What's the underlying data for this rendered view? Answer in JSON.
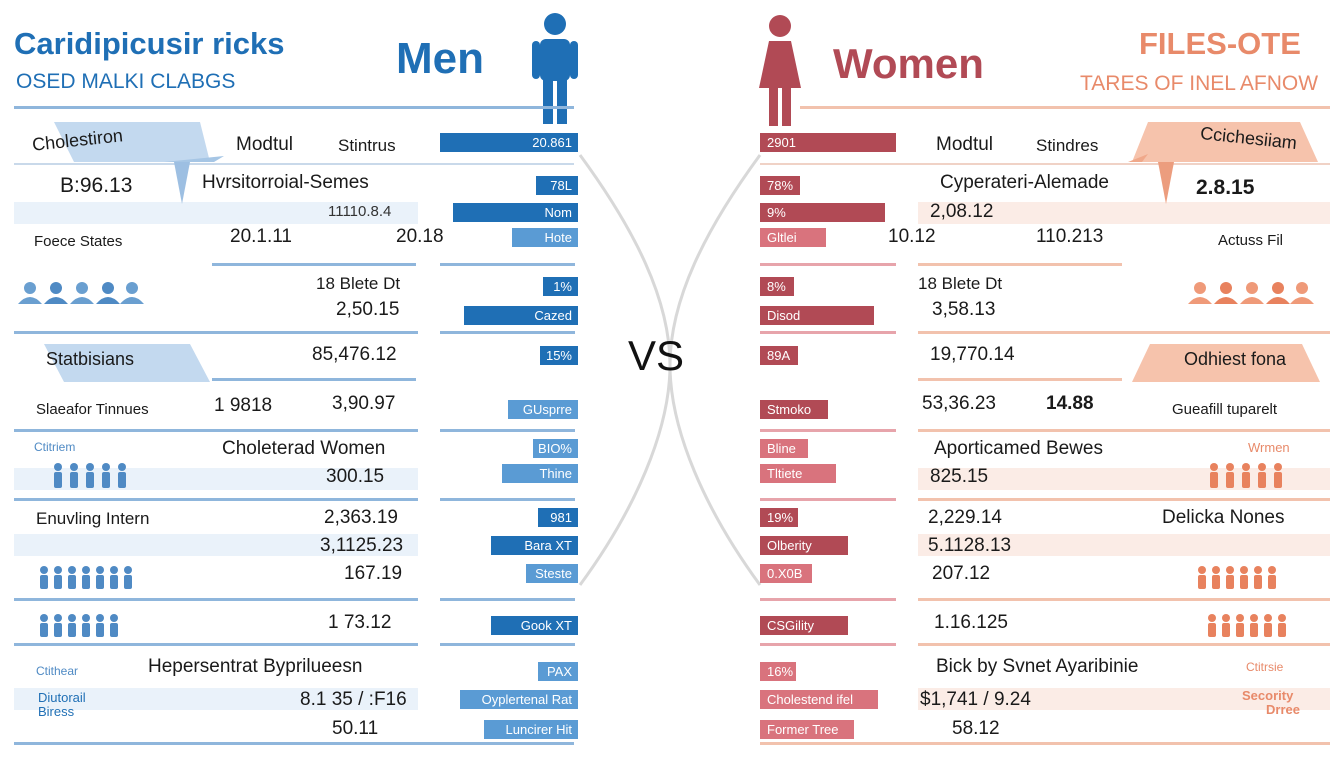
{
  "colors": {
    "men": "#1f6fb5",
    "men_light": "#5a9bd4",
    "women": "#b14a55",
    "women_light": "#d9737d",
    "women_accent": "#e88a6a"
  },
  "header": {
    "left_title": "Caridipicusir ricks",
    "left_subtitle": "OSED MALKI CLABGS",
    "men_label": "Men",
    "women_label": "Women",
    "right_title": "FILES-OTE",
    "right_subtitle": "TARES OF INEL AFNOW",
    "vs": "VS"
  },
  "men": {
    "cholesterol_label": "Cholestiron",
    "cholesterol_value": "B:96.13",
    "col_head_1": "Modtul",
    "col_head_2": "Stintrus",
    "r1_title": "Hvrsitorroial-Semes",
    "r1_sub": "11110.8.4",
    "forecast_label": "Foece States",
    "r2_a": "20.1.11",
    "r2_b": "20.18",
    "r3_title": "18 Blete Dt",
    "r3_value": "2,50.15",
    "statisticians_label": "Statbisians",
    "r4_value": "85,476.12",
    "timeline_label": "Slaeafor Tinnues",
    "r5_a": "1 9818",
    "r5_b": "3,90.97",
    "r6_small": "Ctitriem",
    "r6_title": "Choleterad Women",
    "r6_value": "300.15",
    "r7_title": "Enuvling Intern",
    "r7_a": "2,363.19",
    "r7_b": "3,1125.23",
    "r7_c": "167.19",
    "r8_value": "1 73.12",
    "r9_small": "Ctithear",
    "r9_title": "Hepersentrat Byprilueesn",
    "r9_label1": "Diutorail",
    "r9_label2": "Biress",
    "r9_a": "8.1 35 / :F16",
    "r9_b": "50.11",
    "bars": [
      "20.861",
      "78L",
      "Nom",
      "Hote",
      "1%",
      "Cazed",
      "15%",
      "GUsprre",
      "BIO%",
      "Thine",
      "981",
      "Bara XT",
      "Steste",
      "Gook XT",
      "PAX",
      "Oyplertenal Rat",
      "Luncirer Hit"
    ]
  },
  "women": {
    "cholesterol_label": "Ccichesiiam",
    "cholesterol_value": "2.8.15",
    "col_head_1": "Modtul",
    "col_head_2": "Stindres",
    "r1_title": "Cyperateri-Alemade",
    "r1_sub": "2,08.12",
    "r2_a": "10.12",
    "r2_b": "110.213",
    "r2_label": "Actuss Fil",
    "r3_title": "18 Blete Dt",
    "r3_value": "3,58.13",
    "obesity_label": "Odhiest fona",
    "r4_value": "19,770.14",
    "r5_a": "53,36.23",
    "r5_b": "14.88",
    "r5_label": "Gueafill tuparelt",
    "r6_title": "Aporticamed Bewes",
    "r6_small": "Wrmen",
    "r6_value": "825.15",
    "r7_a": "2,229.14",
    "r7_title": "Delicka Nones",
    "r7_b": "5.1128.13",
    "r7_c": "207.12",
    "r8_value": "1.16.125",
    "r9_title": "Bick by Svnet Ayaribinie",
    "r9_small": "Ctitrsie",
    "r9_a": "$1,741 / 9.24",
    "r9_label1": "Secority",
    "r9_label2": "Drree",
    "r9_b": "58.12",
    "bars": [
      "2901",
      "78%",
      "9%",
      "Gltlei",
      "8%",
      "Disod",
      "89A",
      "Stmoko",
      "Bline",
      "Tltiete",
      "19%",
      "Olberity",
      "0.X0B",
      "CSGility",
      "16%",
      "Cholestend ifel",
      "Former Tree"
    ]
  }
}
